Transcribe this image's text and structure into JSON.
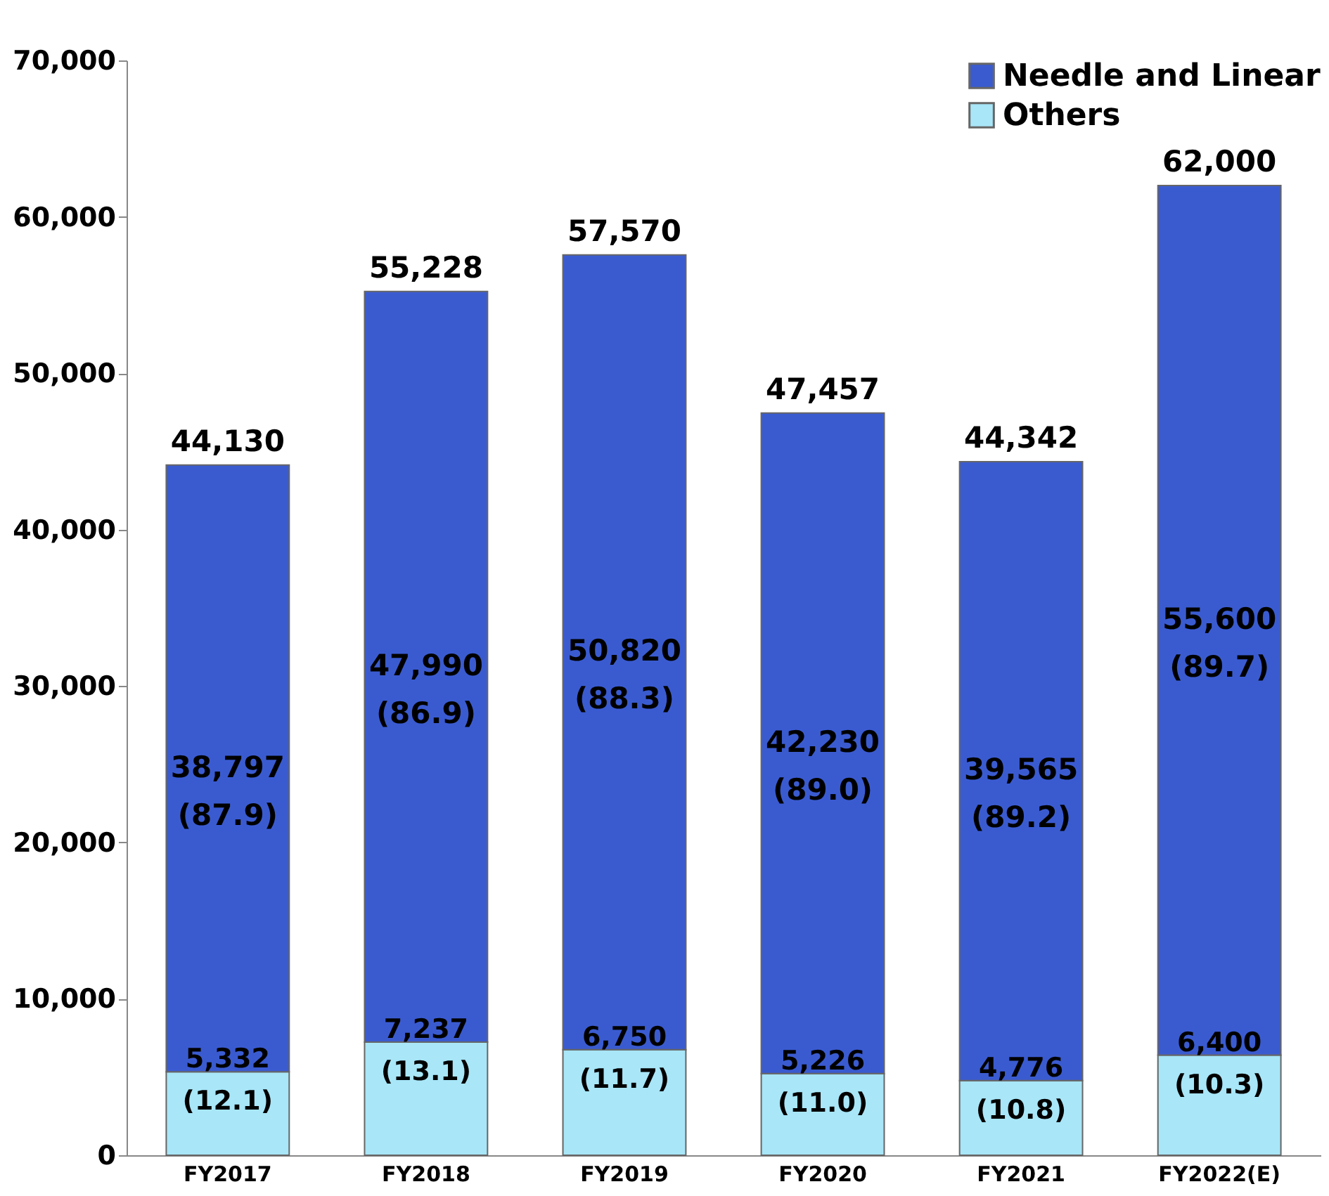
{
  "chart_data": {
    "type": "bar",
    "stacked": true,
    "categories": [
      "FY2017",
      "FY2018",
      "FY2019",
      "FY2020",
      "FY2021",
      "FY2022(E)"
    ],
    "series": [
      {
        "name": "Others",
        "color": "#a8e6f8",
        "values": [
          5332,
          7237,
          6750,
          5226,
          4776,
          6400
        ],
        "value_labels": [
          "5,332\n(12.1)",
          "7,237\n(13.1)",
          "6,750\n(11.7)",
          "5,226\n(11.0)",
          "4,776\n(10.8)",
          "6,400\n(10.3)"
        ]
      },
      {
        "name": "Needle and Linear",
        "color": "#3a5bd0",
        "values": [
          38797,
          47990,
          50820,
          42230,
          39565,
          55600
        ],
        "value_labels": [
          "38,797\n(87.9)",
          "47,990\n(86.9)",
          "50,820\n(88.3)",
          "42,230\n(89.0)",
          "39,565\n(89.2)",
          "55,600\n(89.7)"
        ]
      }
    ],
    "totals": [
      "44,130",
      "55,228",
      "57,570",
      "47,457",
      "44,342",
      "62,000"
    ],
    "ylim": [
      0,
      70000
    ],
    "yticks": [
      0,
      {
        "value": 10000,
        "label": "10,000"
      },
      {
        "value": 20000,
        "label": "20,000"
      },
      {
        "value": 30000,
        "label": "30,000"
      },
      {
        "value": 40000,
        "label": "40,000"
      },
      {
        "value": 50000,
        "label": "50,000"
      },
      {
        "value": 60000,
        "label": "60,000"
      },
      {
        "value": 70000,
        "label": "70,000"
      }
    ],
    "grid": false,
    "legend": "top right"
  }
}
